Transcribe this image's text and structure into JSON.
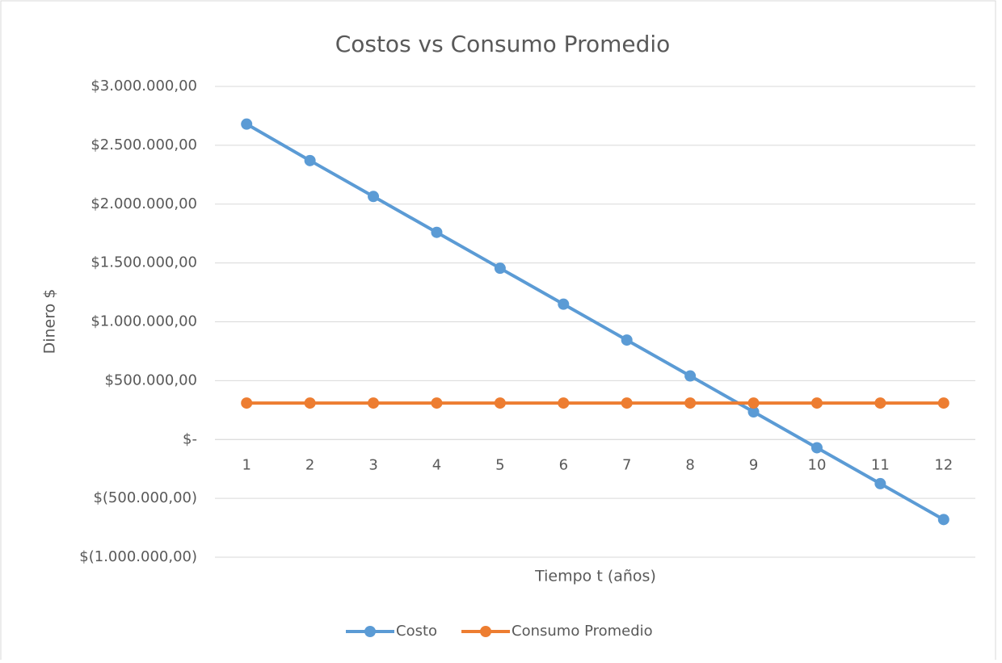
{
  "chart_data": {
    "type": "line",
    "title": "Costos vs Consumo Promedio",
    "x_label": "Tiempo t (años)",
    "y_label": "Dinero $",
    "categories": [
      "1",
      "2",
      "3",
      "4",
      "5",
      "6",
      "7",
      "8",
      "9",
      "10",
      "11",
      "12"
    ],
    "series": [
      {
        "name": "Costo",
        "color": "#5b9bd5",
        "values": [
          2680000,
          2370000,
          2065000,
          1760000,
          1455000,
          1150000,
          845000,
          540000,
          235000,
          -70000,
          -375000,
          -680000
        ]
      },
      {
        "name": "Consumo Promedio",
        "color": "#ed7d31",
        "values": [
          310000,
          310000,
          310000,
          310000,
          310000,
          310000,
          310000,
          310000,
          310000,
          310000,
          310000,
          310000
        ]
      }
    ],
    "ylim": [
      -1000000,
      3000000
    ],
    "yticks": [
      {
        "value": -1000000,
        "label": "$(1.000.000,00)"
      },
      {
        "value": -500000,
        "label": "$(500.000,00)"
      },
      {
        "value": 0,
        "label": "$-"
      },
      {
        "value": 500000,
        "label": "$500.000,00"
      },
      {
        "value": 1000000,
        "label": "$1.000.000,00"
      },
      {
        "value": 1500000,
        "label": "$1.500.000,00"
      },
      {
        "value": 2000000,
        "label": "$2.000.000,00"
      },
      {
        "value": 2500000,
        "label": "$2.500.000,00"
      },
      {
        "value": 3000000,
        "label": "$3.000.000,00"
      }
    ],
    "grid": true,
    "legend": "bottom"
  }
}
